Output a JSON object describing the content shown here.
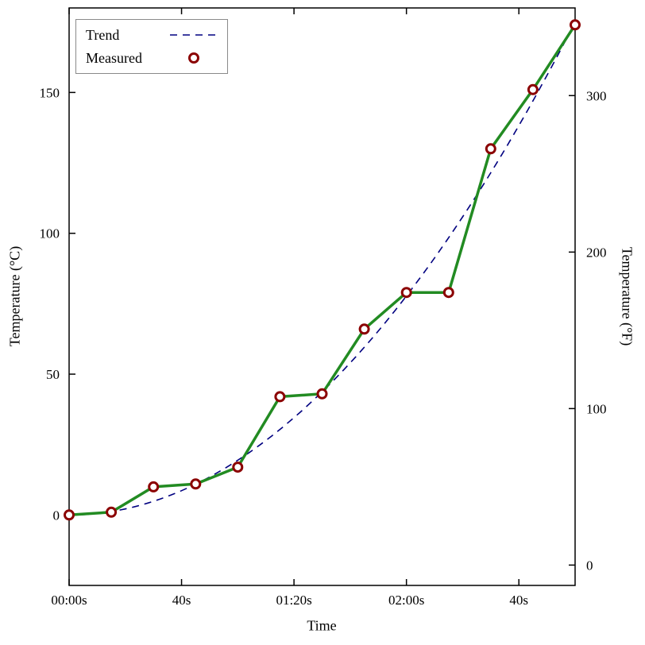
{
  "chart_data": {
    "type": "line",
    "title": "",
    "xlabel": "Time",
    "ylabel_left": "Temperature (°C)",
    "ylabel_right": "Temperature (°F)",
    "xlim": [
      0,
      180
    ],
    "ylim_c": [
      -25,
      180
    ],
    "grid": false,
    "legend_position": "top-left",
    "frame_color": "#000000",
    "background": "#ffffff",
    "x_ticks": [
      {
        "value": 0,
        "label": "00:00s"
      },
      {
        "value": 40,
        "label": "40s"
      },
      {
        "value": 80,
        "label": "01:20s"
      },
      {
        "value": 120,
        "label": "02:00s"
      },
      {
        "value": 160,
        "label": "40s"
      }
    ],
    "y_ticks_left_c": [
      0,
      50,
      100,
      150
    ],
    "y_ticks_right_f": [
      0,
      100,
      200,
      300
    ],
    "series": [
      {
        "name": "Trend",
        "style": "dashed-line",
        "color": "#000080",
        "model": "quadratic",
        "coefficient": 0.0054,
        "x_range": [
          0,
          180
        ],
        "sampled_values_c": [
          0,
          1.2,
          4.9,
          10.9,
          19.4,
          30.4,
          43.7,
          59.5,
          77.8,
          98.4,
          121.5,
          147.0,
          175.0
        ]
      },
      {
        "name": "Measured",
        "style": "solid-line-with-circle-markers",
        "line_color": "#228B22",
        "marker_color": "#8B0000",
        "marker_fill": "#ffffff",
        "x_seconds": [
          0,
          15,
          30,
          45,
          60,
          75,
          90,
          105,
          120,
          135,
          150,
          165,
          180
        ],
        "values_c": [
          0,
          1,
          10,
          11,
          17,
          42,
          43,
          66,
          79,
          79,
          130,
          151,
          174
        ]
      }
    ]
  }
}
